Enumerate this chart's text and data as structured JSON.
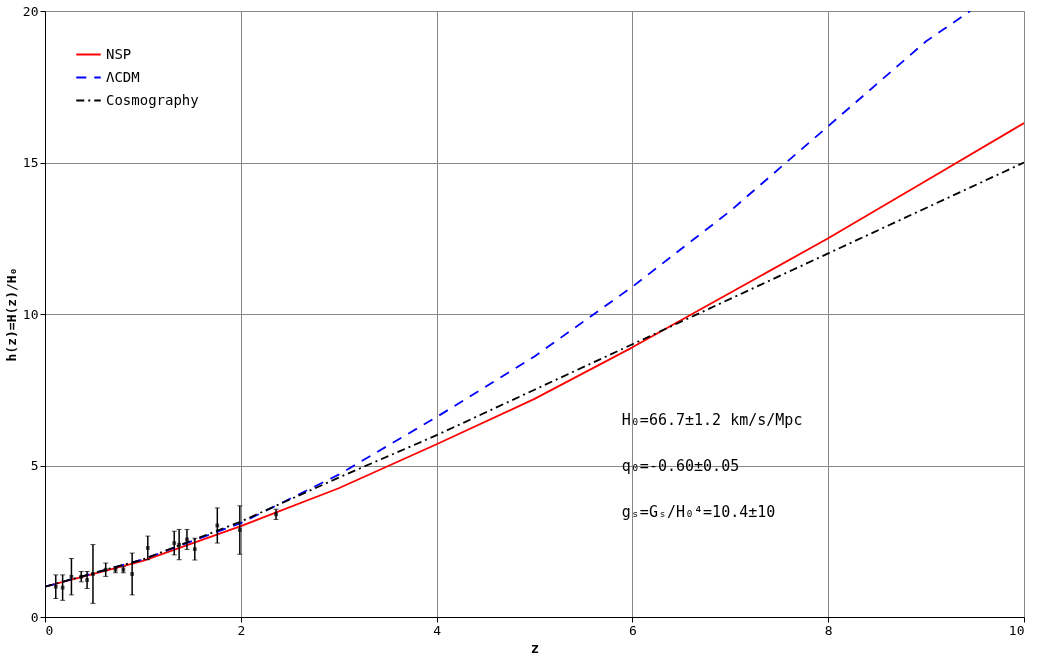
{
  "chart_data": {
    "type": "line",
    "xlabel": "z",
    "ylabel": "h(z)=H(z)/H₀",
    "xlim": [
      0,
      10
    ],
    "ylim": [
      0,
      20
    ],
    "xticks": [
      0,
      2,
      4,
      6,
      8,
      10
    ],
    "yticks": [
      0,
      5,
      10,
      15,
      20
    ],
    "grid": true,
    "legend": "top left",
    "annotations": [
      "H₀=66.7±1.2 km/s/Mpc",
      "q₀=-0.60±0.05",
      "gₛ=Gₛ/H₀⁴=10.4±10"
    ],
    "series": [
      {
        "name": "NSP",
        "color": "#ff0000",
        "line_style": "solid",
        "x": [
          0,
          1,
          2,
          3,
          4,
          5,
          6,
          7,
          8,
          9,
          10
        ],
        "values": [
          1,
          1.85,
          3.0,
          4.25,
          5.7,
          7.2,
          8.9,
          10.7,
          12.5,
          14.4,
          16.3
        ]
      },
      {
        "name": "ΛCDM",
        "color": "#0000ff",
        "line_style": "dashed",
        "x": [
          0,
          1,
          2,
          3,
          4,
          5,
          6,
          7,
          8,
          9,
          9.45
        ],
        "values": [
          1,
          1.9,
          3.1,
          4.7,
          6.6,
          8.6,
          10.9,
          13.4,
          16.2,
          19.0,
          20
        ]
      },
      {
        "name": "Cosmography",
        "color": "#000000",
        "line_style": "dashdot",
        "x": [
          0,
          1,
          2,
          3,
          4,
          5,
          6,
          7,
          8,
          9,
          10
        ],
        "values": [
          1,
          1.9,
          3.15,
          4.6,
          6.0,
          7.5,
          9.0,
          10.5,
          12.0,
          13.5,
          15.0
        ]
      },
      {
        "type": "scatter",
        "color": "#000000",
        "marker": "square",
        "x": [
          0.11,
          0.18,
          0.27,
          0.37,
          0.43,
          0.49,
          0.62,
          0.72,
          0.8,
          0.89,
          1.05,
          1.32,
          1.37,
          1.45,
          1.53,
          1.76,
          1.99,
          2.36
        ],
        "values": [
          1.0,
          0.97,
          1.33,
          1.33,
          1.22,
          1.42,
          1.56,
          1.56,
          1.56,
          1.42,
          2.28,
          2.44,
          2.39,
          2.56,
          2.24,
          3.02,
          2.87,
          3.39
        ],
        "errors": [
          0.39,
          0.42,
          0.6,
          0.17,
          0.28,
          0.97,
          0.22,
          0.1,
          0.1,
          0.69,
          0.39,
          0.39,
          0.5,
          0.33,
          0.36,
          0.58,
          0.8,
          0.17
        ]
      }
    ]
  }
}
